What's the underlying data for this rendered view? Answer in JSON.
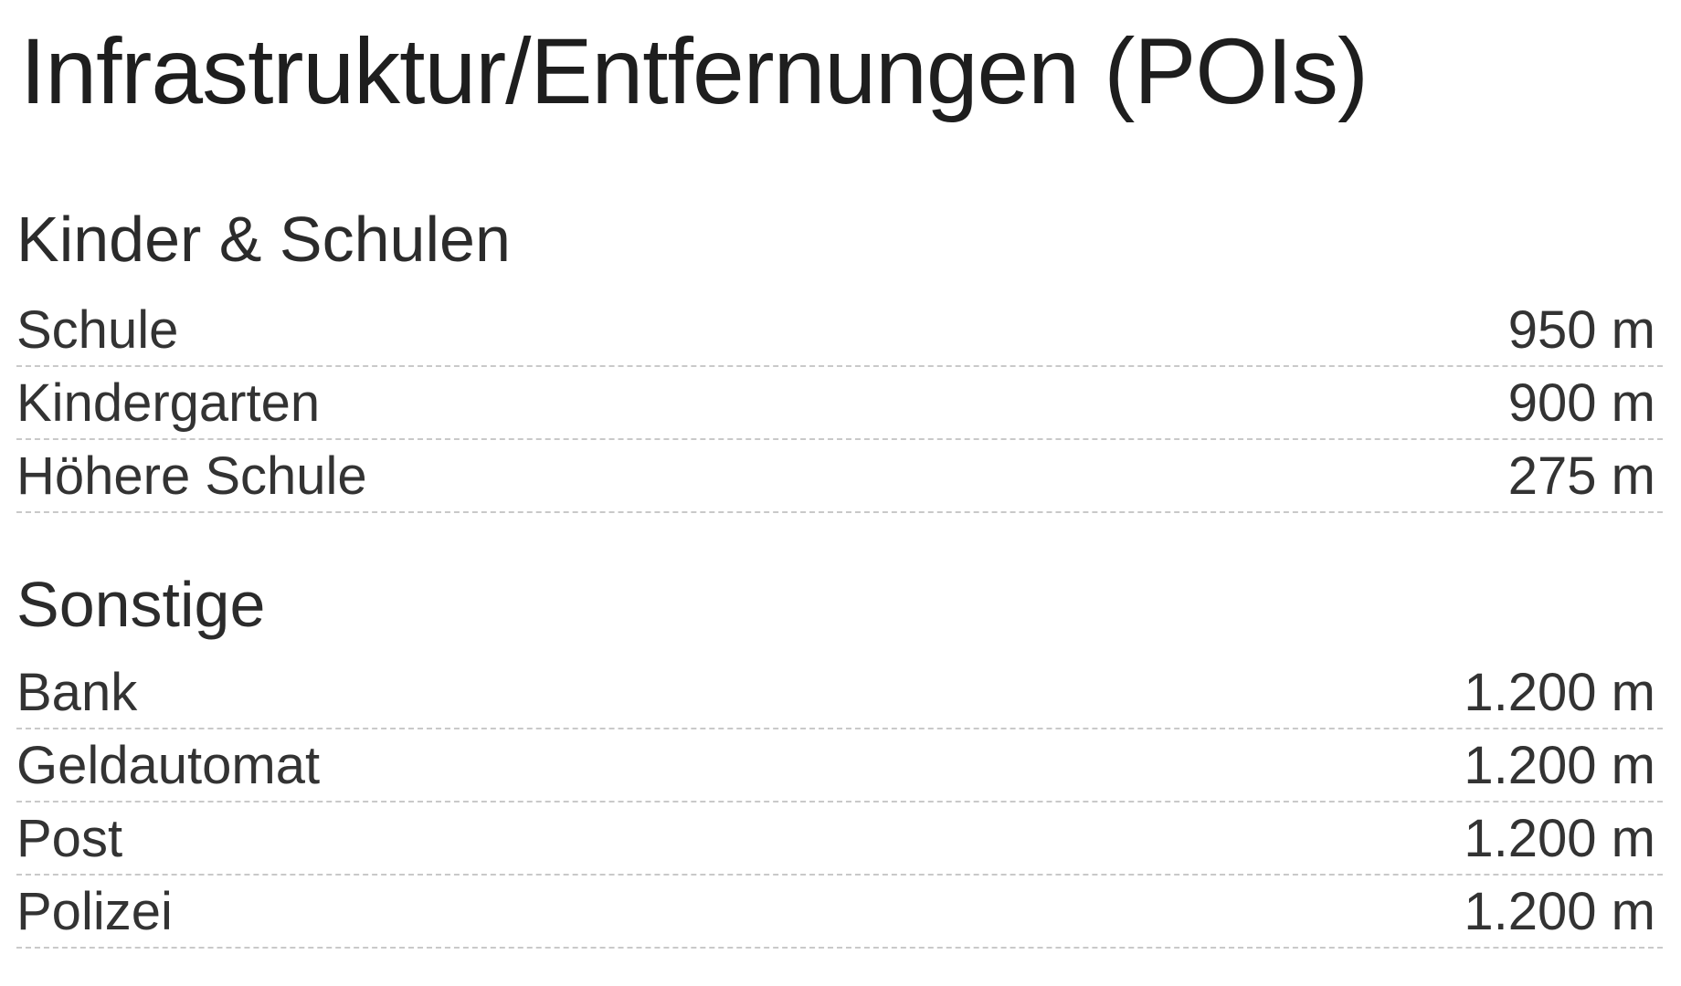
{
  "title": "Infrastruktur/Entfernungen (POIs)",
  "sections": [
    {
      "heading": "Kinder & Schulen",
      "items": [
        {
          "label": "Schule",
          "value": "950 m"
        },
        {
          "label": "Kindergarten",
          "value": "900 m"
        },
        {
          "label": "Höhere Schule",
          "value": "275 m"
        }
      ]
    },
    {
      "heading": "Sonstige",
      "items": [
        {
          "label": "Bank",
          "value": "1.200 m"
        },
        {
          "label": "Geldautomat",
          "value": "1.200 m"
        },
        {
          "label": "Post",
          "value": "1.200 m"
        },
        {
          "label": "Polizei",
          "value": "1.200 m"
        }
      ]
    }
  ]
}
